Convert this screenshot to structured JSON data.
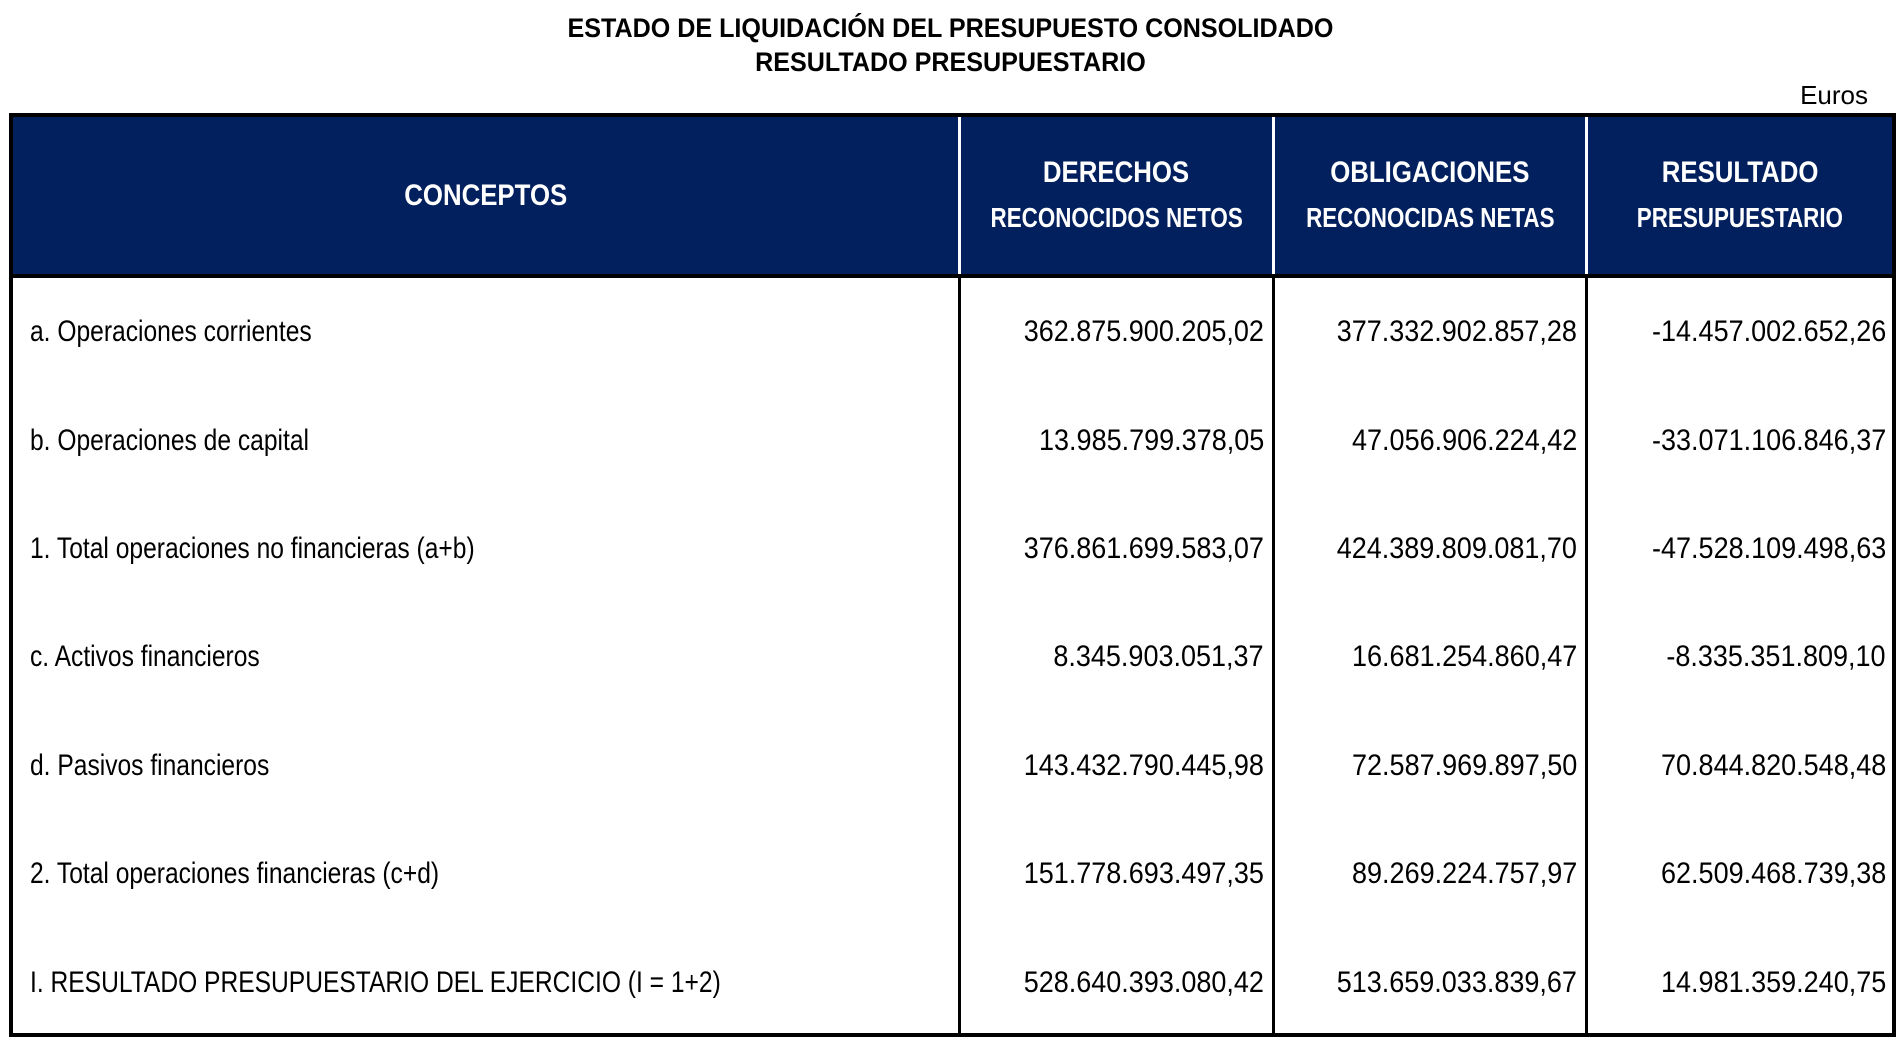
{
  "document": {
    "title_line1": "ESTADO DE LIQUIDACIÓN DEL PRESUPUESTO CONSOLIDADO",
    "title_line2": "RESULTADO PRESUPUESTARIO",
    "unit": "Euros"
  },
  "table": {
    "header_color": "#02205e",
    "columns": [
      {
        "line1": "CONCEPTOS",
        "line2": ""
      },
      {
        "line1": "DERECHOS",
        "line2": "RECONOCIDOS NETOS"
      },
      {
        "line1": "OBLIGACIONES",
        "line2": "RECONOCIDAS NETAS"
      },
      {
        "line1": "RESULTADO",
        "line2": "PRESUPUESTARIO"
      }
    ],
    "rows": [
      {
        "concepto": "a. Operaciones  corrientes",
        "derechos": "362.875.900.205,02",
        "obligaciones": "377.332.902.857,28",
        "resultado": "-14.457.002.652,26"
      },
      {
        "concepto": "b. Operaciones  de  capital",
        "derechos": "13.985.799.378,05",
        "obligaciones": "47.056.906.224,42",
        "resultado": "-33.071.106.846,37"
      },
      {
        "concepto": "1. Total  operaciones no financieras (a+b)",
        "derechos": "376.861.699.583,07",
        "obligaciones": "424.389.809.081,70",
        "resultado": "-47.528.109.498,63"
      },
      {
        "concepto": "c. Activos  financieros",
        "derechos": "8.345.903.051,37",
        "obligaciones": "16.681.254.860,47",
        "resultado": "-8.335.351.809,10"
      },
      {
        "concepto": "d.  Pasivos  financieros",
        "derechos": "143.432.790.445,98",
        "obligaciones": "72.587.969.897,50",
        "resultado": "70.844.820.548,48"
      },
      {
        "concepto": "2. Total operaciones financieras (c+d)",
        "derechos": "151.778.693.497,35",
        "obligaciones": "89.269.224.757,97",
        "resultado": "62.509.468.739,38"
      },
      {
        "concepto": "I. RESULTADO PRESUPUESTARIO DEL EJERCICIO (I = 1+2)",
        "derechos": "528.640.393.080,42",
        "obligaciones": "513.659.033.839,67",
        "resultado": "14.981.359.240,75"
      }
    ]
  }
}
